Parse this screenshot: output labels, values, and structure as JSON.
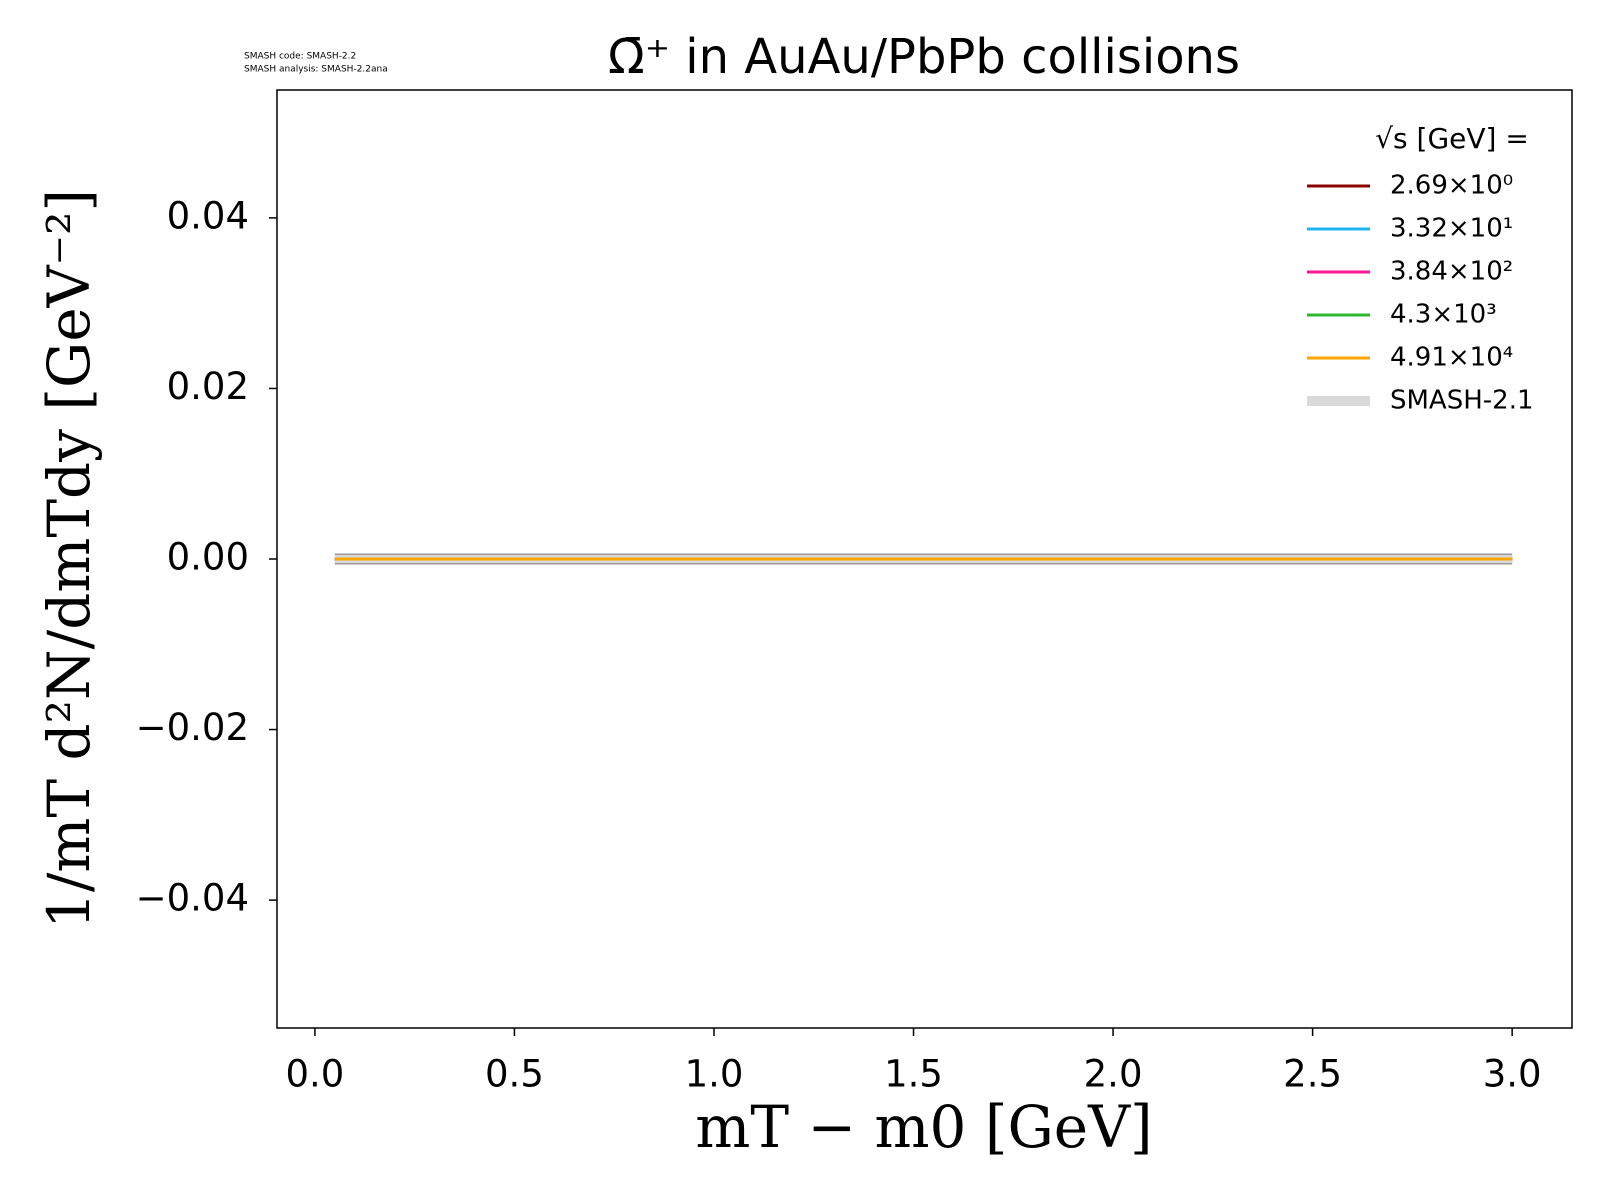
{
  "chart_data": {
    "type": "line",
    "title": "Ω̄⁺ in AuAu/PbPb collisions",
    "annotations": [
      "SMASH code:      SMASH-2.2",
      "SMASH analysis: SMASH-2.2ana"
    ],
    "x_label": "mT − m0 [GeV]",
    "y_label": "1/mT d²N/dmTdy [GeV⁻²]",
    "legend_title": "√s  [GeV] =",
    "legend_position": "upper right",
    "x": [
      0.05,
      3.0
    ],
    "series": [
      {
        "name": "SMASH-2.1",
        "color": "#d9d9d9",
        "values": [
          0,
          0
        ]
      },
      {
        "name": "2.69×10⁰",
        "color": "#8b0000",
        "values": [
          0,
          0
        ]
      },
      {
        "name": "3.32×10¹",
        "color": "#1eb4f0",
        "values": [
          0,
          0
        ]
      },
      {
        "name": "3.84×10²",
        "color": "#ff1493",
        "values": [
          0,
          0
        ]
      },
      {
        "name": "4.3×10³",
        "color": "#2eb82e",
        "values": [
          0,
          0
        ]
      },
      {
        "name": "4.91×10⁴",
        "color": "#ffa500",
        "values": [
          0,
          0
        ]
      }
    ],
    "xlim": [
      -0.095,
      3.15
    ],
    "ylim": [
      -0.055,
      0.055
    ],
    "xticks": [
      {
        "value": 0,
        "label": "0.0"
      },
      0.5,
      {
        "value": 1,
        "label": "1.0"
      },
      1.5,
      {
        "value": 2,
        "label": "2.0"
      },
      2.5,
      {
        "value": 3,
        "label": "3.0"
      }
    ],
    "yticks": [
      {
        "value": -0.04,
        "label": "−0.04"
      },
      {
        "value": -0.02,
        "label": "−0.02"
      },
      {
        "value": 0,
        "label": "0.00"
      },
      0.02,
      0.04
    ]
  }
}
